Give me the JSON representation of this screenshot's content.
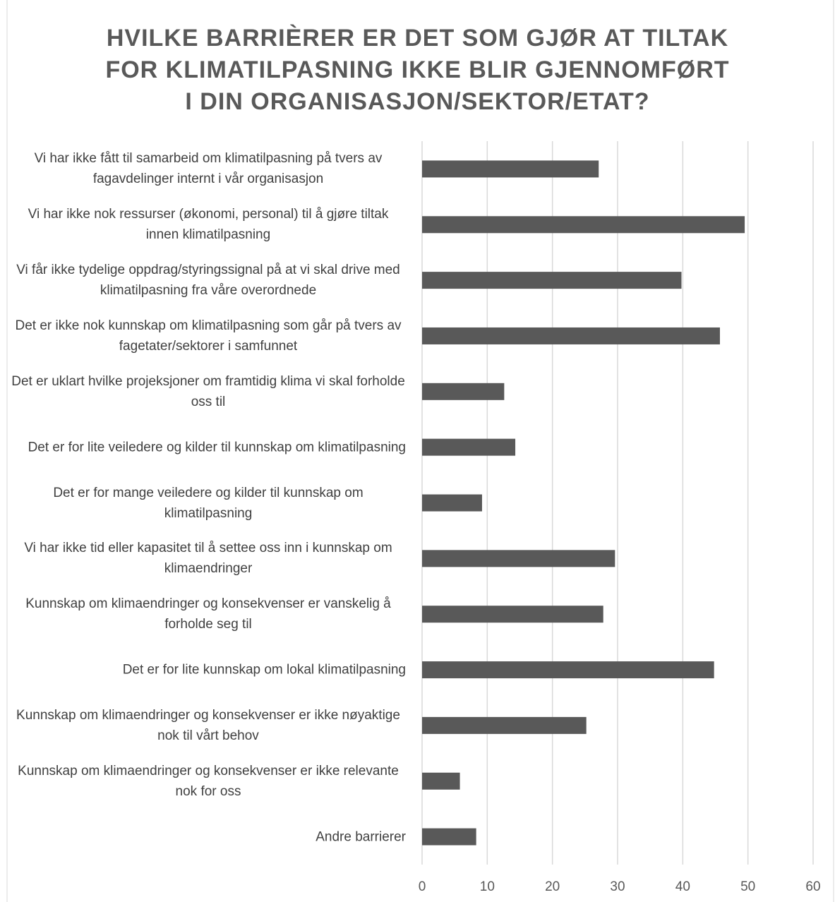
{
  "chart_data": {
    "type": "bar",
    "orientation": "horizontal",
    "title": "HVILKE BARRIÈRER ER DET SOM GJØR AT TILTAK FOR KLIMATILPASNING IKKE BLIR GJENNOMFØRT I DIN ORGANISASJON/SEKTOR/ETAT?",
    "categories": [
      "Vi har ikke fått til samarbeid om klimatilpasning på tvers av fagavdelinger internt i vår organisasjon",
      "Vi har ikke nok ressurser (økonomi, personal) til å gjøre tiltak innen klimatilpasning",
      "Vi får ikke tydelige oppdrag/styringssignal på at vi skal drive med klimatilpasning fra våre overordnede",
      "Det er ikke nok kunnskap om klimatilpasning som går på tvers av fagetater/sektorer i samfunnet",
      "Det er uklart hvilke projeksjoner om framtidig klima vi skal forholde oss til",
      "Det er for lite veiledere og kilder til kunnskap om klimatilpasning",
      "Det er for mange veiledere og kilder til kunnskap om klimatilpasning",
      "Vi har ikke tid eller kapasitet til å settee oss inn i kunnskap om klimaendringer",
      "Kunnskap om klimaendringer og konsekvenser er vanskelig å forholde seg til",
      "Det er for lite kunnskap om lokal klimatilpasning",
      "Kunnskap om klimaendringer og konsekvenser er ikke nøyaktige nok til vårt behov",
      "Kunnskap om klimaendringer og konsekvenser er ikke relevante nok for oss",
      "Andre barrierer"
    ],
    "values": [
      27.1,
      49.5,
      39.8,
      45.7,
      12.6,
      14.3,
      9.2,
      29.6,
      27.8,
      44.8,
      25.2,
      5.8,
      8.3
    ],
    "color": "#595959",
    "xlim": [
      0,
      60
    ],
    "xticks": [
      0,
      10,
      20,
      30,
      40,
      50,
      60
    ],
    "grid": true
  }
}
